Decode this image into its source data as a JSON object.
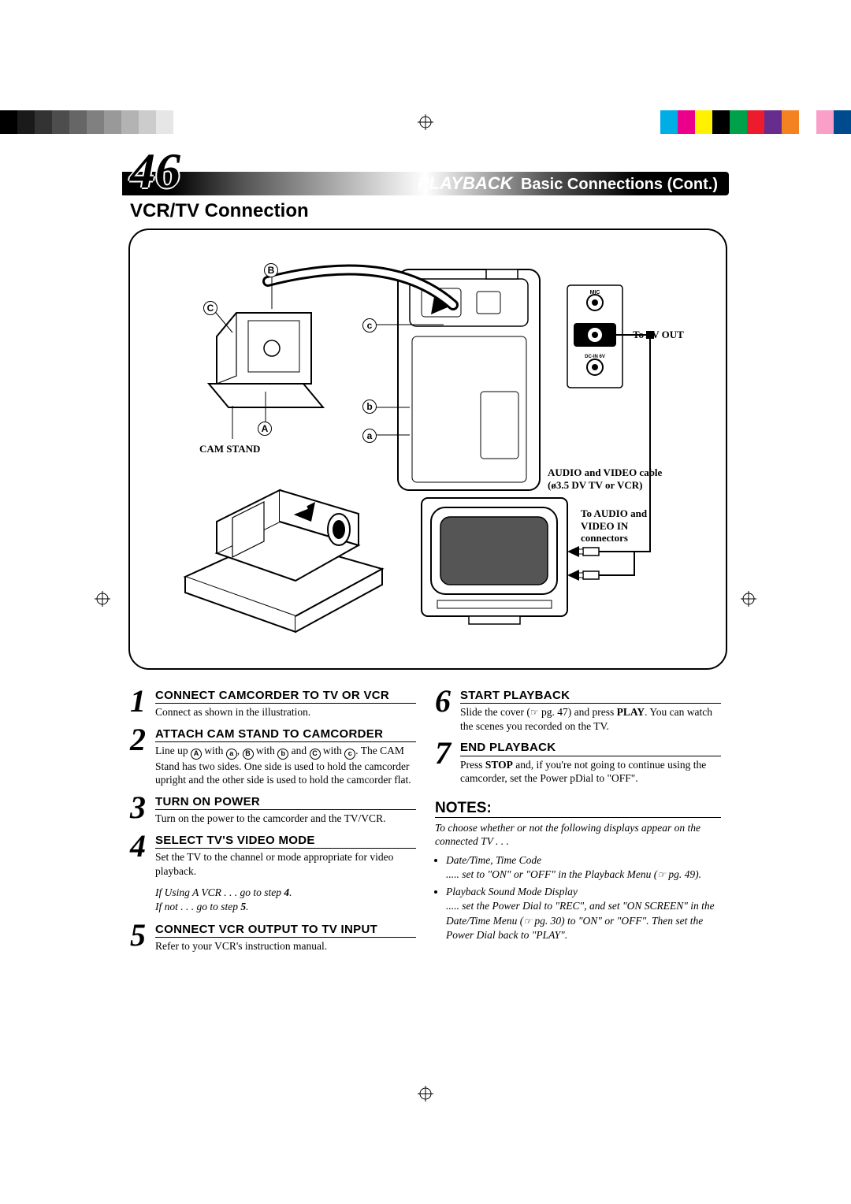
{
  "page_number": "46",
  "header": {
    "section": "PLAYBACK",
    "subtitle": "Basic Connections (Cont.)"
  },
  "section_title": "VCR/TV Connection",
  "diagram": {
    "labels": {
      "cam_stand": "CAM STAND",
      "to_av_out": "To AV OUT",
      "audio_video_cable": "AUDIO and VIDEO cable",
      "cable_spec": "(ø3.5 DV TV or VCR)",
      "to_audio_video_in": "To AUDIO and VIDEO IN connectors",
      "mic": "MIC",
      "av_out": "AV-OUT",
      "dc_in": "DC-IN 6V"
    },
    "markers": {
      "A": "A",
      "B": "B",
      "C": "C",
      "a": "a",
      "b": "b",
      "c": "c"
    }
  },
  "steps_left": [
    {
      "num": "1",
      "title": "CONNECT CAMCORDER TO TV OR VCR",
      "text": "Connect as shown in the illustration."
    },
    {
      "num": "2",
      "title": "ATTACH CAM STAND TO CAMCORDER",
      "text": "Line up |A| with |a|, |B| with |b| and |C| with |c|. The CAM Stand has two sides. One side is used to hold the camcorder upright and the other side is used to hold the camcorder flat."
    },
    {
      "num": "3",
      "title": "TURN ON POWER",
      "text": "Turn on the power to the camcorder and the TV/VCR."
    },
    {
      "num": "4",
      "title": "SELECT TV'S VIDEO MODE",
      "text": "Set the TV to the channel or mode appropriate for video playback."
    }
  ],
  "hint_lines": {
    "line1": "If Using A VCR . . . go to step ",
    "line1_bold": "4",
    "line1_end": ".",
    "line2": "If not . . . go to step ",
    "line2_bold": "5",
    "line2_end": "."
  },
  "step5": {
    "num": "5",
    "title": "CONNECT VCR OUTPUT TO TV INPUT",
    "text": "Refer to your VCR's instruction manual."
  },
  "steps_right": [
    {
      "num": "6",
      "title": "START PLAYBACK",
      "text_pre": "Slide the cover (",
      "text_ref": " pg. 47) and press ",
      "text_bold": "PLAY",
      "text_post": ". You can watch the scenes you recorded on the TV."
    },
    {
      "num": "7",
      "title": "END PLAYBACK",
      "text_pre": "Press ",
      "text_bold": "STOP",
      "text_post": " and, if you're not going to continue using the camcorder, set the Power pDial to \"OFF\"."
    }
  ],
  "notes": {
    "title": "NOTES:",
    "intro": "To choose whether or not the following displays appear on the connected TV . . .",
    "items": [
      {
        "head": "Date/Time, Time Code",
        "body_pre": "..... set to \"ON\" or \"OFF\" in the Playback Menu (",
        "body_post": " pg. 49)."
      },
      {
        "head": "Playback Sound Mode Display",
        "body_pre": "..... set the Power Dial to \"REC\", and set \"ON SCREEN\" in the Date/Time Menu (",
        "body_post": " pg. 30) to \"ON\" or \"OFF\". Then set the Power Dial back to \"PLAY\"."
      }
    ]
  },
  "colorbar": {
    "greys": [
      "#000000",
      "#1a1a1a",
      "#333333",
      "#4d4d4d",
      "#666666",
      "#808080",
      "#999999",
      "#b3b3b3",
      "#cccccc",
      "#e6e6e6",
      "#ffffff"
    ],
    "colors": [
      "#00aee6",
      "#ec008b",
      "#fff100",
      "#000000",
      "#00a14b",
      "#ed1b2e",
      "#662d8f",
      "#f58220",
      "#ffffff",
      "#faa0c8",
      "#004b8d"
    ]
  }
}
